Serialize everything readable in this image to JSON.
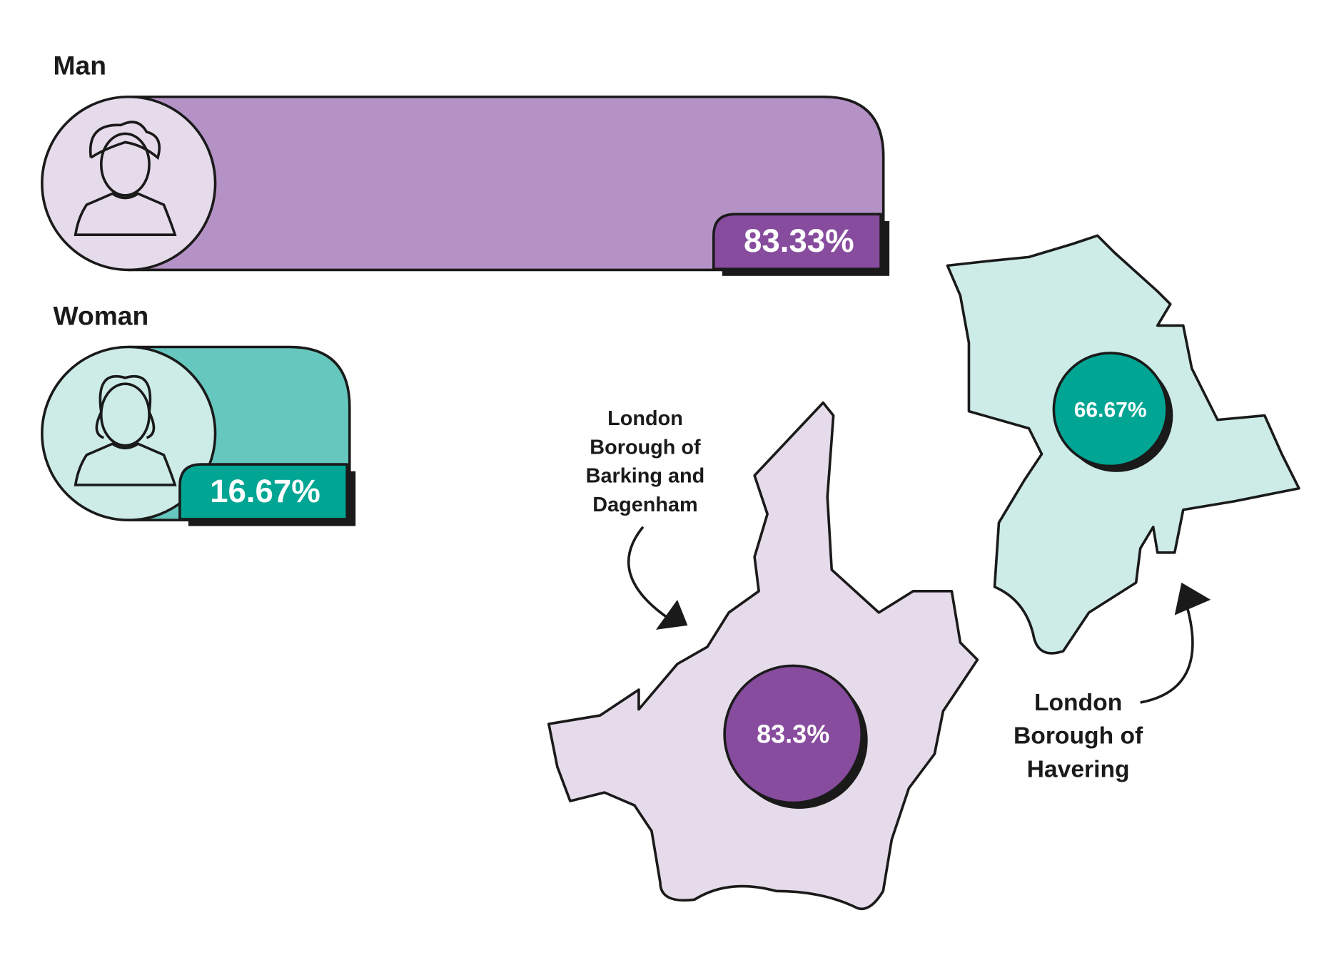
{
  "chart_data": [
    {
      "type": "bar",
      "categories": [
        "Man",
        "Woman"
      ],
      "values": [
        83.33,
        16.67
      ],
      "value_labels": [
        "83.33%",
        "16.67%"
      ],
      "colors": [
        "#b592c5",
        "#66c7bf"
      ],
      "badge_colors": [
        "#874c9e",
        "#00a593"
      ],
      "icon_colors": [
        "#e6dbea",
        "#cdece8"
      ]
    },
    {
      "type": "map",
      "categories": [
        "London Borough of Barking and Dagenham",
        "London Borough of Havering"
      ],
      "values": [
        83.3,
        66.67
      ],
      "value_labels": [
        "83.3%",
        "66.67%"
      ],
      "colors": [
        "#874c9e",
        "#00a593"
      ]
    }
  ]
}
